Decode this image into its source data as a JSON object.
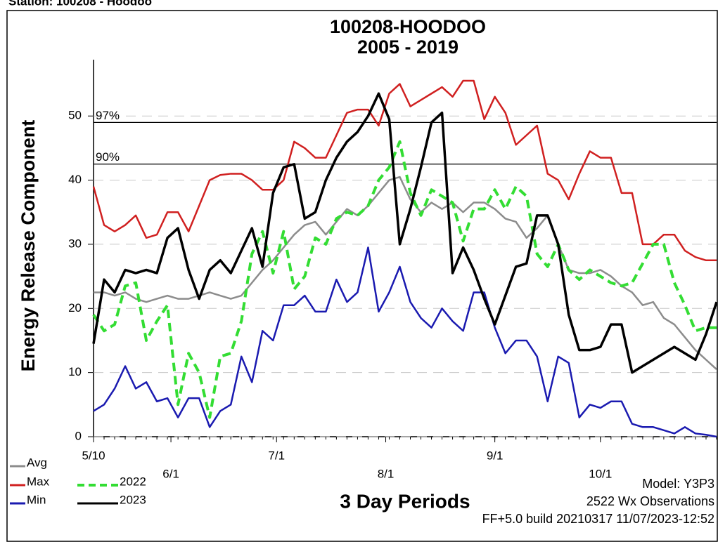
{
  "station": "Station: 100208 - Hoodoo",
  "chart_data": {
    "type": "line",
    "title": "100208-HOODOO",
    "subtitle": "2005 - 2019",
    "y_label": "Energy Release Component",
    "x_label": "3 Day Periods",
    "annotations": [
      "Model: Y3P3",
      "2522 Wx Observations",
      "FF+5.0 build 20210317 11/07/2023-12:52"
    ],
    "xlim": [
      0,
      59
    ],
    "xticks": [
      {
        "value": 0,
        "label": "5/10"
      },
      {
        "value": 7.33,
        "label": "6/1"
      },
      {
        "value": 17.33,
        "label": "7/1"
      },
      {
        "value": 27.67,
        "label": "8/1"
      },
      {
        "value": 38,
        "label": "9/1"
      },
      {
        "value": 48,
        "label": "10/1"
      }
    ],
    "ylim": [
      0,
      59
    ],
    "yticks": [
      0,
      10,
      20,
      30,
      40,
      50
    ],
    "grid": true,
    "reference_lines": [
      {
        "label": "97%",
        "value": 49
      },
      {
        "label": "90%",
        "value": 42.5
      }
    ],
    "series": [
      {
        "name": "Avg",
        "color": "#8c8c8c",
        "dashed": false,
        "values": [
          22.5,
          22.5,
          22,
          22.5,
          21.5,
          21,
          21.5,
          22,
          21.5,
          21.5,
          22,
          22.5,
          22,
          21.5,
          22,
          24,
          26,
          27.5,
          29.5,
          31.5,
          33,
          33.5,
          31.5,
          33.5,
          35.5,
          34.5,
          36,
          38,
          40,
          40.5,
          37,
          35,
          36.5,
          35.5,
          36.5,
          35,
          36.5,
          36.5,
          35.5,
          34,
          33.5,
          31,
          32.5,
          34.5,
          30,
          26,
          25.5,
          25.5,
          26,
          25,
          23.5,
          22.5,
          20.5,
          21,
          18.5,
          17.5,
          15.5,
          13.5,
          12,
          10.5
        ]
      },
      {
        "name": "Max",
        "color": "#d02020",
        "dashed": false,
        "values": [
          39,
          33,
          32,
          33,
          34.5,
          31,
          31.5,
          35,
          35,
          32,
          36,
          40,
          40.8,
          41,
          41,
          40,
          38.5,
          38.5,
          40,
          46,
          45,
          43.5,
          43.5,
          47,
          50.5,
          51,
          51,
          48.5,
          53.5,
          55,
          51.5,
          52.5,
          53.5,
          54.5,
          53,
          55.5,
          55.5,
          49.5,
          53,
          50.5,
          45.5,
          47,
          48.5,
          41,
          40,
          37,
          41,
          44.5,
          43.5,
          43.5,
          38,
          38,
          30,
          30,
          31.5,
          31.5,
          29,
          28,
          27.5,
          27.5
        ]
      },
      {
        "name": "Min",
        "color": "#1a1ab0",
        "dashed": false,
        "values": [
          4,
          5,
          7.5,
          11,
          7.5,
          8.5,
          5.5,
          6,
          3,
          6,
          6,
          1.5,
          4,
          5,
          12.5,
          8.5,
          16.5,
          15,
          20.5,
          20.5,
          22,
          19.5,
          19.5,
          24.5,
          21,
          22.5,
          29.5,
          19.5,
          22.5,
          26.5,
          21,
          18.5,
          17,
          20,
          18,
          16.5,
          22.5,
          22.5,
          17,
          13,
          15,
          15,
          12.5,
          5.5,
          12.5,
          11.5,
          3,
          5,
          4.5,
          5.5,
          5.5,
          2,
          1.5,
          1.5,
          1,
          0.5,
          1.5,
          0.5,
          0.3,
          0
        ]
      },
      {
        "name": "2022",
        "color": "#33dd33",
        "dashed": true,
        "values": [
          19,
          16.5,
          17.5,
          23.5,
          24,
          15,
          18,
          20.5,
          5,
          13,
          10,
          3,
          12.5,
          13,
          18,
          28.5,
          32,
          25.5,
          32,
          23,
          25,
          31,
          30,
          34,
          35,
          34.5,
          36,
          40,
          42,
          46,
          38,
          34.5,
          38.5,
          37.5,
          36.5,
          30.5,
          35.5,
          35.5,
          38.5,
          35.5,
          39,
          37.5,
          28.5,
          26.5,
          30,
          26,
          24.5,
          26,
          25,
          24,
          23.5,
          24,
          27,
          30,
          30,
          24,
          20.5,
          16.5,
          17,
          17
        ]
      },
      {
        "name": "2023",
        "color": "#000000",
        "dashed": false,
        "values": [
          14.5,
          24.5,
          22.5,
          26,
          25.5,
          26,
          25.5,
          31,
          32.5,
          26,
          21.5,
          26,
          27.5,
          25.5,
          29,
          32.5,
          26.5,
          38,
          42,
          42.5,
          34,
          35,
          40,
          43.5,
          46,
          47.5,
          50,
          53.5,
          49.5,
          30,
          35.5,
          42,
          49,
          50.5,
          25.5,
          29.5,
          26,
          21.5,
          17.5,
          22,
          26.5,
          27,
          34.5,
          34.5,
          30,
          19,
          13.5,
          13.5,
          14,
          17.5,
          17.5,
          10,
          11,
          12,
          13,
          14,
          13,
          12,
          16,
          21
        ]
      }
    ]
  }
}
